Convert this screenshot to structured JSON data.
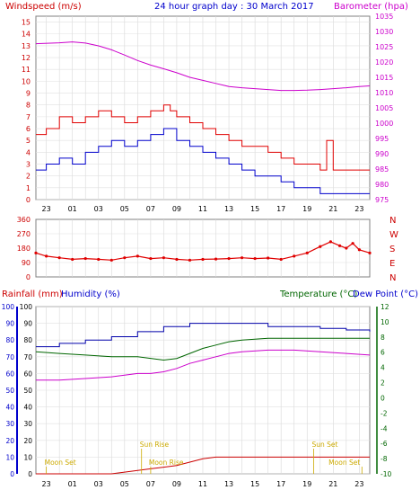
{
  "header": {
    "left": "Windspeed (m/s)",
    "center": "24 hour graph day : 30 March 2017",
    "right": "Barometer (hpa)"
  },
  "bottom_header": {
    "rainfall": "Rainfall (mm)",
    "humidity": "Humidity (%)",
    "temperature": "Temperature (°C)",
    "dewpoint": "Dew Point (°C)"
  },
  "direction_labels": [
    "N",
    "W",
    "S",
    "E",
    "N"
  ],
  "colors": {
    "wind": "#e00000",
    "gust": "#e00000",
    "avg": "#0000cc",
    "baro": "#cc00cc",
    "temp": "#006600",
    "dew": "#0000aa",
    "humidity": "#cc00cc",
    "rain": "#cc0000",
    "moon": "#ccaa00"
  },
  "chart_data": [
    {
      "type": "line",
      "title": "24 hour graph day : 30 March 2017",
      "x_tick_labels": [
        "23",
        "01",
        "03",
        "05",
        "07",
        "09",
        "11",
        "13",
        "15",
        "17",
        "19",
        "21",
        "23"
      ],
      "left_axis": {
        "label": "Windspeed (m/s)",
        "ticks": [
          "15",
          "14",
          "13",
          "12",
          "11",
          "10",
          "9",
          "8",
          "7",
          "6",
          "5",
          "4",
          "3",
          "2",
          "1",
          "0"
        ],
        "range": [
          0,
          15.5
        ]
      },
      "right_axis": {
        "label": "Barometer (hpa)",
        "ticks": [
          "1035",
          "1030",
          "1025",
          "1020",
          "1015",
          "1010",
          "1005",
          "1000",
          "995",
          "990",
          "985",
          "980",
          "975"
        ],
        "range": [
          975,
          1035
        ]
      },
      "series": [
        {
          "name": "Barometer",
          "x": [
            22.2,
            24,
            25,
            26,
            27,
            28,
            29,
            30,
            31,
            32,
            33,
            34,
            35,
            36,
            37,
            38,
            39,
            40,
            41,
            42,
            43,
            44,
            45,
            46,
            47,
            47.8
          ],
          "values": [
            1026,
            1026.3,
            1026.6,
            1026.2,
            1025.3,
            1024,
            1022.3,
            1020.5,
            1019,
            1017.8,
            1016.5,
            1015,
            1014,
            1013,
            1012,
            1011.6,
            1011.3,
            1011,
            1010.7,
            1010.7,
            1010.8,
            1011,
            1011.3,
            1011.6,
            1012,
            1012.2
          ]
        },
        {
          "name": "Gust",
          "x": [
            22.2,
            23,
            24,
            25,
            26,
            27,
            28,
            29,
            30,
            31,
            32,
            32.5,
            33,
            34,
            35,
            36,
            37,
            38,
            39,
            40,
            41,
            42,
            43,
            44,
            44.5,
            45,
            46,
            47,
            47.8
          ],
          "values": [
            5.5,
            6,
            7,
            6.5,
            7,
            7.5,
            7,
            6.5,
            7,
            7.5,
            8,
            7.5,
            7,
            6.5,
            6,
            5.5,
            5,
            4.5,
            4.5,
            4,
            3.5,
            3,
            3,
            2.5,
            5,
            2.5,
            2.5,
            2.5,
            2.5
          ]
        },
        {
          "name": "Average",
          "x": [
            22.2,
            23,
            24,
            25,
            26,
            27,
            28,
            29,
            30,
            31,
            32,
            33,
            34,
            35,
            36,
            37,
            38,
            39,
            40,
            41,
            42,
            43,
            44,
            45,
            46,
            47,
            47.8
          ],
          "values": [
            2.5,
            3,
            3.5,
            3,
            4,
            4.5,
            5,
            4.5,
            5,
            5.5,
            6,
            5,
            4.5,
            4,
            3.5,
            3,
            2.5,
            2,
            2,
            1.5,
            1,
            1,
            0.5,
            0.5,
            0.5,
            0.5,
            0.5
          ]
        }
      ]
    },
    {
      "type": "scatter",
      "left_axis": {
        "ticks": [
          "360",
          "270",
          "180",
          "90",
          "0"
        ],
        "range": [
          0,
          360
        ]
      },
      "right_axis_labels": [
        "N",
        "W",
        "S",
        "E",
        "N"
      ],
      "series": [
        {
          "name": "Wind direction",
          "x": [
            22.2,
            23,
            24,
            25,
            26,
            27,
            28,
            29,
            30,
            31,
            32,
            33,
            34,
            35,
            36,
            37,
            38,
            39,
            40,
            41,
            42,
            43,
            44,
            44.8,
            45.5,
            46,
            46.5,
            47,
            47.8
          ],
          "values": [
            150,
            130,
            120,
            110,
            115,
            110,
            105,
            120,
            130,
            115,
            120,
            110,
            105,
            110,
            112,
            115,
            120,
            115,
            118,
            110,
            130,
            150,
            190,
            220,
            195,
            180,
            210,
            170,
            150
          ]
        }
      ]
    },
    {
      "type": "line",
      "x_tick_labels": [
        "23",
        "01",
        "03",
        "05",
        "07",
        "09",
        "11",
        "13",
        "15",
        "17",
        "19",
        "21",
        "23"
      ],
      "left_axes": [
        {
          "label": "Rainfall (mm)",
          "ticks": [
            "100",
            "90",
            "80",
            "70",
            "60",
            "50",
            "40",
            "30",
            "20",
            "10",
            "0"
          ]
        },
        {
          "label": "Humidity (%)",
          "ticks": [
            "100",
            "90",
            "80",
            "70",
            "60",
            "50",
            "40",
            "30",
            "20",
            "10",
            "0"
          ]
        }
      ],
      "right_axis": {
        "label": "Temperature (°C)",
        "ticks": [
          "12",
          "10",
          "8",
          "6",
          "4",
          "2",
          "0",
          "-2",
          "-4",
          "-6",
          "-8",
          "-10"
        ],
        "range": [
          -10,
          12
        ]
      },
      "series": [
        {
          "name": "Dew Point",
          "x": [
            22.2,
            24,
            26,
            28,
            30,
            32,
            34,
            36,
            38,
            40,
            42,
            44,
            46,
            47.8
          ],
          "values": [
            76,
            78,
            80,
            82,
            85,
            88,
            90,
            90,
            90,
            88,
            88,
            87,
            86,
            85
          ]
        },
        {
          "name": "Temperature",
          "x": [
            22.2,
            24,
            26,
            28,
            30,
            32,
            33,
            34,
            35,
            36,
            37,
            38,
            40,
            42,
            44,
            46,
            47.8
          ],
          "values": [
            73,
            72,
            71,
            70,
            70,
            68,
            69,
            72,
            75,
            77,
            79,
            80,
            81,
            81,
            81,
            81,
            81
          ]
        },
        {
          "name": "Humidity",
          "x": [
            22.2,
            24,
            26,
            28,
            29,
            30,
            31,
            32,
            33,
            34,
            35,
            36,
            37,
            38,
            40,
            42,
            44,
            46,
            47.8
          ],
          "values": [
            56,
            56,
            57,
            58,
            59,
            60,
            60,
            61,
            63,
            66,
            68,
            70,
            72,
            73,
            74,
            74,
            73,
            72,
            71
          ]
        },
        {
          "name": "Rainfall",
          "x": [
            22.2,
            28,
            29,
            30,
            31,
            32,
            33,
            34,
            35,
            36,
            37,
            38,
            40,
            42,
            44,
            46,
            47.8
          ],
          "values": [
            0,
            0,
            1,
            2,
            3,
            4,
            5,
            7,
            9,
            10,
            10,
            10,
            10,
            10,
            10,
            10,
            10
          ]
        }
      ],
      "annotations": [
        {
          "text": "Moon Set",
          "x": 23
        },
        {
          "text": "Sun Rise",
          "x": 30.3
        },
        {
          "text": "Moon Rise",
          "x": 31.0
        },
        {
          "text": "Sun Set",
          "x": 43.5
        },
        {
          "text": "Moon Set",
          "x": 47.2
        }
      ]
    }
  ]
}
